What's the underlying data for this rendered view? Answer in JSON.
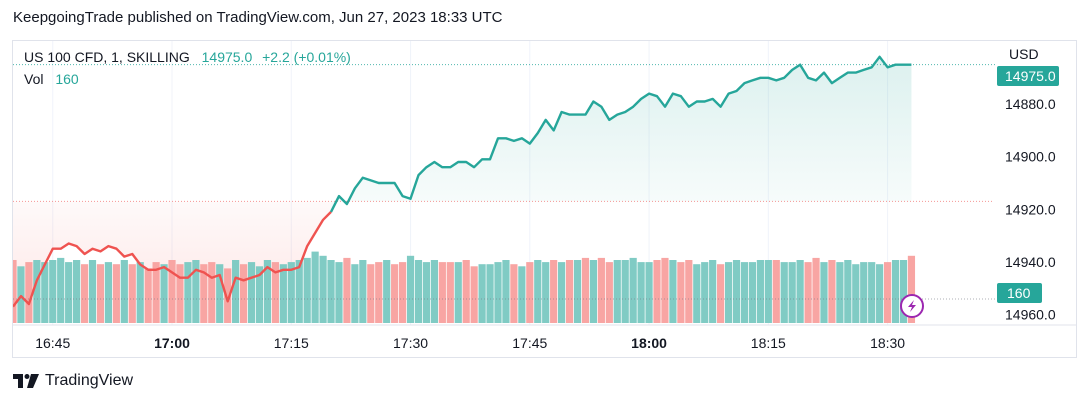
{
  "header": {
    "published": "KeepgoingTrade published on TradingView.com, Jun 27, 2023 18:33 UTC"
  },
  "legend": {
    "symbol": "US 100 CFD, 1, SKILLING",
    "price": "14975.0",
    "change": "+2.2 (+0.01%)",
    "vol_label": "Vol",
    "vol_value": "160"
  },
  "axis": {
    "currency": "USD",
    "price_ticks": [
      "14960.0",
      "14940.0",
      "14920.0",
      "14900.0",
      "14880.0"
    ],
    "time_ticks": [
      "16:45",
      "17:00",
      "17:15",
      "17:30",
      "17:45",
      "18:00",
      "18:15",
      "18:30"
    ],
    "last_price_badge": "14975.0",
    "last_volume_badge": "160"
  },
  "footer": {
    "brand": "TradingView"
  },
  "colors": {
    "up": "#26a69a",
    "down": "#ef5350",
    "vol_up": "#80cbc4",
    "vol_down": "#f8a5a3",
    "flash_icon": "#9c27b0"
  },
  "chart_data": {
    "type": "line",
    "title": "US 100 CFD, 1, SKILLING",
    "ylabel": "USD",
    "ylim": [
      14876,
      14984
    ],
    "y_ticks": [
      14880,
      14900,
      14920,
      14940,
      14960
    ],
    "x_ticks": [
      "16:45",
      "17:00",
      "17:15",
      "17:30",
      "17:45",
      "18:00",
      "18:15",
      "18:30"
    ],
    "x_range": [
      "16:40",
      "18:42"
    ],
    "reference_level": 14923,
    "price_series": {
      "name": "US 100 CFD",
      "x": [
        "16:40",
        "16:41",
        "16:42",
        "16:43",
        "16:44",
        "16:45",
        "16:46",
        "16:47",
        "16:48",
        "16:49",
        "16:50",
        "16:51",
        "16:52",
        "16:53",
        "16:54",
        "16:55",
        "16:56",
        "16:57",
        "16:58",
        "16:59",
        "17:00",
        "17:01",
        "17:02",
        "17:03",
        "17:04",
        "17:05",
        "17:06",
        "17:07",
        "17:08",
        "17:09",
        "17:10",
        "17:11",
        "17:12",
        "17:13",
        "17:14",
        "17:15",
        "17:16",
        "17:17",
        "17:18",
        "17:19",
        "17:20",
        "17:21",
        "17:22",
        "17:23",
        "17:24",
        "17:25",
        "17:26",
        "17:27",
        "17:28",
        "17:29",
        "17:30",
        "17:31",
        "17:32",
        "17:33",
        "17:34",
        "17:35",
        "17:36",
        "17:37",
        "17:38",
        "17:39",
        "17:40",
        "17:41",
        "17:42",
        "17:43",
        "17:44",
        "17:45",
        "17:46",
        "17:47",
        "17:48",
        "17:49",
        "17:50",
        "17:51",
        "17:52",
        "17:53",
        "17:54",
        "17:55",
        "17:56",
        "17:57",
        "17:58",
        "17:59",
        "18:00",
        "18:01",
        "18:02",
        "18:03",
        "18:04",
        "18:05",
        "18:06",
        "18:07",
        "18:08",
        "18:09",
        "18:10",
        "18:11",
        "18:12",
        "18:13",
        "18:14",
        "18:15",
        "18:16",
        "18:17",
        "18:18",
        "18:19",
        "18:20",
        "18:21",
        "18:22",
        "18:23",
        "18:24",
        "18:25",
        "18:26",
        "18:27",
        "18:28",
        "18:29",
        "18:30",
        "18:31",
        "18:32",
        "18:33"
      ],
      "values": [
        14883,
        14887,
        14884,
        14893,
        14899,
        14905,
        14905,
        14907,
        14906,
        14903,
        14905,
        14904,
        14906,
        14905,
        14902,
        14903,
        14899,
        14897,
        14897,
        14898,
        14896,
        14894,
        14894,
        14897,
        14896,
        14894,
        14895,
        14885,
        14894,
        14893,
        14894,
        14895,
        14898,
        14896,
        14897,
        14897,
        14898,
        14906,
        14911,
        14916,
        14919,
        14925,
        14922,
        14928,
        14932,
        14931,
        14930,
        14930,
        14930,
        14925,
        14924,
        14933,
        14936,
        14938,
        14936,
        14936,
        14938,
        14938,
        14936,
        14939,
        14939,
        14947,
        14947,
        14946,
        14947,
        14945,
        14949,
        14954,
        14950,
        14957,
        14956,
        14956,
        14956,
        14961,
        14959,
        14954,
        14956,
        14957,
        14959,
        14962,
        14964,
        14963,
        14959,
        14964,
        14963,
        14959,
        14961,
        14961,
        14962,
        14959,
        14964,
        14965,
        14968,
        14969,
        14970,
        14970,
        14969,
        14970,
        14973,
        14975,
        14970,
        14969,
        14972,
        14968,
        14970,
        14972,
        14972,
        14973,
        14974,
        14978,
        14974,
        14975,
        14975,
        14975
      ],
      "down_segment_end": "17:20"
    },
    "volume_series": {
      "name": "Vol",
      "last_value": 160,
      "values": [
        150,
        135,
        145,
        150,
        145,
        150,
        155,
        145,
        150,
        140,
        150,
        140,
        145,
        140,
        150,
        140,
        145,
        130,
        145,
        140,
        150,
        140,
        145,
        150,
        140,
        145,
        140,
        130,
        150,
        140,
        145,
        135,
        150,
        145,
        140,
        145,
        150,
        155,
        170,
        160,
        150,
        145,
        155,
        140,
        150,
        140,
        145,
        150,
        140,
        145,
        160,
        150,
        145,
        150,
        145,
        145,
        145,
        150,
        135,
        140,
        140,
        145,
        150,
        140,
        135,
        145,
        150,
        145,
        150,
        145,
        150,
        150,
        155,
        150,
        155,
        145,
        150,
        150,
        155,
        145,
        145,
        150,
        155,
        150,
        145,
        150,
        140,
        145,
        150,
        140,
        145,
        150,
        145,
        145,
        150,
        150,
        150,
        145,
        145,
        150,
        145,
        155,
        145,
        150,
        145,
        150,
        140,
        145,
        145,
        140,
        145,
        150,
        150,
        160
      ],
      "directions": [
        "d",
        "u",
        "d",
        "u",
        "u",
        "u",
        "u",
        "u",
        "u",
        "d",
        "u",
        "d",
        "u",
        "d",
        "u",
        "d",
        "u",
        "d",
        "d",
        "u",
        "d",
        "d",
        "u",
        "u",
        "d",
        "d",
        "u",
        "d",
        "u",
        "d",
        "u",
        "u",
        "u",
        "d",
        "u",
        "u",
        "u",
        "u",
        "u",
        "u",
        "u",
        "u",
        "d",
        "u",
        "u",
        "d",
        "d",
        "u",
        "d",
        "d",
        "u",
        "u",
        "u",
        "u",
        "d",
        "d",
        "u",
        "d",
        "d",
        "u",
        "u",
        "u",
        "u",
        "d",
        "u",
        "d",
        "u",
        "u",
        "d",
        "u",
        "d",
        "u",
        "d",
        "u",
        "d",
        "d",
        "u",
        "u",
        "u",
        "u",
        "u",
        "d",
        "d",
        "u",
        "d",
        "d",
        "u",
        "u",
        "u",
        "d",
        "u",
        "u",
        "u",
        "u",
        "u",
        "u",
        "d",
        "u",
        "u",
        "u",
        "d",
        "d",
        "u",
        "d",
        "u",
        "u",
        "u",
        "u",
        "u",
        "u",
        "d",
        "u",
        "u",
        "d"
      ]
    }
  }
}
